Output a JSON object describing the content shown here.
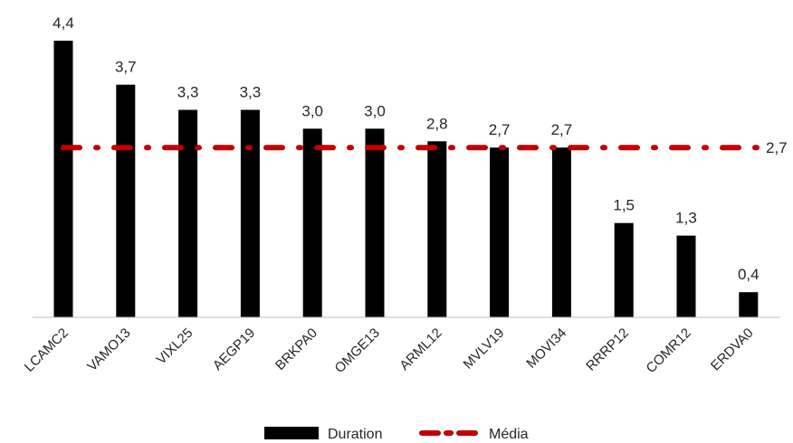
{
  "chart_data": {
    "type": "bar",
    "categories": [
      "LCAMC2",
      "VAMO13",
      "VIXL25",
      "AEGP19",
      "BRKPA0",
      "OMGE13",
      "ARML12",
      "MVLV19",
      "MOVI34",
      "RRRP12",
      "COMR12",
      "ERDVA0"
    ],
    "series": [
      {
        "name": "Duration",
        "type": "bar",
        "color": "#000000",
        "values": [
          4.4,
          3.7,
          3.3,
          3.3,
          3.0,
          3.0,
          2.8,
          2.7,
          2.7,
          1.5,
          1.3,
          0.4
        ],
        "labels": [
          "4,4",
          "3,7",
          "3,3",
          "3,3",
          "3,0",
          "3,0",
          "2,8",
          "2,7",
          "2,7",
          "1,5",
          "1,3",
          "0,4"
        ]
      },
      {
        "name": "Média",
        "type": "line",
        "style": "dash-dot",
        "color": "#c00000",
        "value": 2.7,
        "label": "2,7"
      }
    ],
    "ylim": [
      0,
      4.4
    ],
    "legend": "bottom",
    "grid": false
  }
}
